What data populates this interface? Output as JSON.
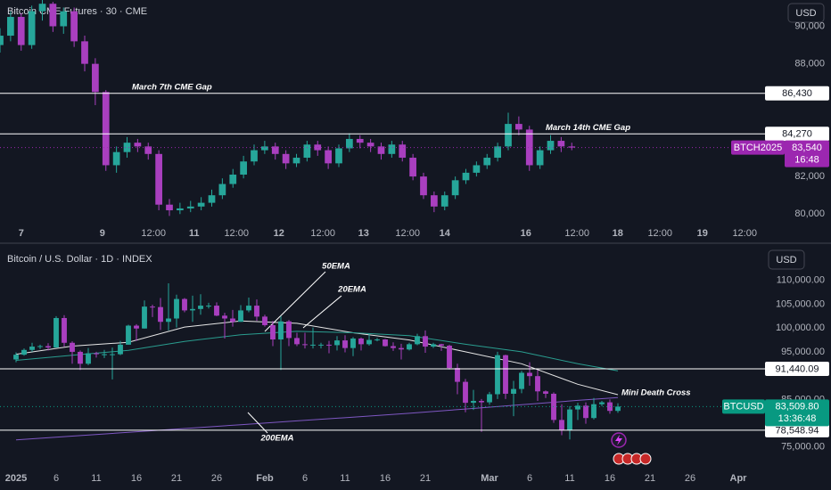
{
  "chart_data": [
    {
      "type": "candlestick",
      "title": "Bitcoin CME Futures · 30 · CME",
      "currency": "USD",
      "up_color": "#26a69a",
      "down_color": "#a93fbf",
      "x": [
        0,
        3,
        6,
        9,
        12,
        15,
        18,
        21,
        24,
        27,
        30,
        33,
        36,
        39,
        42,
        45,
        48,
        51,
        54,
        57,
        60,
        63,
        66,
        69,
        72,
        75,
        78,
        81,
        84,
        87,
        90,
        93,
        96,
        99,
        102,
        105,
        108,
        111,
        114,
        117,
        120,
        123,
        126,
        129,
        132,
        135,
        138,
        141,
        144,
        147,
        150,
        153,
        156,
        159,
        162
      ],
      "open": [
        89000,
        89500,
        90500,
        89000,
        90800,
        91200,
        90000,
        90800,
        89200,
        88000,
        86500,
        82600,
        83300,
        83800,
        83600,
        83200,
        80500,
        80200,
        80300,
        80400,
        80600,
        81000,
        81600,
        82100,
        82800,
        83400,
        83600,
        83200,
        82700,
        83000,
        83700,
        83400,
        82700,
        83500,
        84000,
        83800,
        83600,
        83200,
        83700,
        83000,
        82000,
        81000,
        80400,
        81000,
        81800,
        82200,
        82600,
        83000,
        83600,
        84800,
        84500,
        82600,
        83400,
        83900,
        83600
      ],
      "high": [
        89900,
        90800,
        90700,
        91100,
        91400,
        91300,
        91000,
        91000,
        89500,
        88300,
        86600,
        83600,
        84100,
        84000,
        83800,
        83400,
        80800,
        80600,
        80700,
        80900,
        81300,
        81900,
        82400,
        83100,
        83700,
        83900,
        83800,
        83400,
        83200,
        83900,
        83900,
        83600,
        83700,
        84300,
        84200,
        84000,
        83800,
        83900,
        83900,
        83200,
        82200,
        81200,
        81200,
        82000,
        82400,
        82800,
        83200,
        83800,
        85400,
        85200,
        84700,
        83600,
        84200,
        84100,
        83800
      ],
      "low": [
        88600,
        89200,
        88700,
        88800,
        90300,
        89700,
        89600,
        88900,
        87600,
        85800,
        82300,
        82200,
        83000,
        83300,
        82900,
        80200,
        79900,
        80000,
        80100,
        80200,
        80400,
        80800,
        81400,
        81900,
        82600,
        83200,
        82900,
        82400,
        82500,
        82800,
        83100,
        82400,
        82500,
        83300,
        83500,
        83300,
        82900,
        83000,
        82800,
        81800,
        80800,
        80100,
        80200,
        80800,
        81600,
        82000,
        82400,
        82800,
        83400,
        84200,
        82300,
        82400,
        83200,
        83300,
        83400
      ],
      "close": [
        89500,
        90500,
        89000,
        90800,
        91200,
        90000,
        90800,
        89200,
        88000,
        86500,
        82600,
        83300,
        83800,
        83600,
        83200,
        80500,
        80200,
        80300,
        80400,
        80600,
        81000,
        81600,
        82100,
        82800,
        83400,
        83600,
        83200,
        82700,
        83000,
        83700,
        83400,
        82700,
        83500,
        84000,
        83800,
        83600,
        83200,
        83700,
        83000,
        82000,
        81000,
        80400,
        81000,
        81800,
        82200,
        82600,
        83000,
        83600,
        84800,
        84500,
        82600,
        83400,
        83900,
        83600,
        83540
      ],
      "xlim": [
        0,
        216
      ],
      "xticks": [
        {
          "value": 6,
          "label": "7"
        },
        {
          "value": 29,
          "label": "9"
        },
        {
          "value": 43.5,
          "label": "12:00"
        },
        {
          "value": 55,
          "label": "11"
        },
        {
          "value": 67,
          "label": "12:00"
        },
        {
          "value": 79,
          "label": "12"
        },
        {
          "value": 91.5,
          "label": "12:00"
        },
        {
          "value": 103,
          "label": "13"
        },
        {
          "value": 115.5,
          "label": "12:00"
        },
        {
          "value": 126,
          "label": "14"
        },
        {
          "value": 149,
          "label": "16"
        },
        {
          "value": 163.5,
          "label": "12:00"
        },
        {
          "value": 175,
          "label": "18"
        },
        {
          "value": 187,
          "label": "12:00"
        },
        {
          "value": 199,
          "label": "19"
        },
        {
          "value": 211,
          "label": "12:00"
        }
      ],
      "ylim": [
        79300,
        91400
      ],
      "yticks": [
        {
          "value": 80000,
          "label": "80,000"
        },
        {
          "value": 82000,
          "label": "82,000"
        },
        {
          "value": 88000,
          "label": "88,000"
        },
        {
          "value": 90000,
          "label": "90,000"
        }
      ],
      "levels": [
        {
          "value": 86430,
          "label": "86,430",
          "note": "March 7th CME Gap"
        },
        {
          "value": 84270,
          "label": "84,270",
          "note": "March 14th CME Gap"
        }
      ],
      "last_price": {
        "symbol": "BTCH2025",
        "value": 83540,
        "label": "83,540",
        "countdown": "16:48",
        "color": "#9c27b0"
      }
    },
    {
      "type": "candlestick",
      "title": "Bitcoin / U.S. Dollar · 1D · INDEX",
      "currency": "USD",
      "up_color": "#26a69a",
      "down_color": "#a93fbf",
      "x": [
        "2025-01-01",
        "2025-01-02",
        "2025-01-03",
        "2025-01-04",
        "2025-01-05",
        "2025-01-06",
        "2025-01-07",
        "2025-01-08",
        "2025-01-09",
        "2025-01-10",
        "2025-01-11",
        "2025-01-12",
        "2025-01-13",
        "2025-01-14",
        "2025-01-15",
        "2025-01-16",
        "2025-01-17",
        "2025-01-18",
        "2025-01-19",
        "2025-01-20",
        "2025-01-21",
        "2025-01-22",
        "2025-01-23",
        "2025-01-24",
        "2025-01-25",
        "2025-01-26",
        "2025-01-27",
        "2025-01-28",
        "2025-01-29",
        "2025-01-30",
        "2025-01-31",
        "2025-02-01",
        "2025-02-02",
        "2025-02-03",
        "2025-02-04",
        "2025-02-05",
        "2025-02-06",
        "2025-02-07",
        "2025-02-08",
        "2025-02-09",
        "2025-02-10",
        "2025-02-11",
        "2025-02-12",
        "2025-02-13",
        "2025-02-14",
        "2025-02-15",
        "2025-02-16",
        "2025-02-17",
        "2025-02-18",
        "2025-02-19",
        "2025-02-20",
        "2025-02-21",
        "2025-02-22",
        "2025-02-23",
        "2025-02-24",
        "2025-02-25",
        "2025-02-26",
        "2025-02-27",
        "2025-02-28",
        "2025-03-01",
        "2025-03-02",
        "2025-03-03",
        "2025-03-04",
        "2025-03-05",
        "2025-03-06",
        "2025-03-07",
        "2025-03-08",
        "2025-03-09",
        "2025-03-10",
        "2025-03-11",
        "2025-03-12",
        "2025-03-13",
        "2025-03-14",
        "2025-03-15",
        "2025-03-16",
        "2025-03-17"
      ],
      "open": [
        93400,
        94400,
        95400,
        96100,
        96200,
        95900,
        102100,
        96900,
        95000,
        92500,
        94700,
        94500,
        94500,
        94500,
        96500,
        100500,
        99900,
        104500,
        104400,
        101300,
        102000,
        106100,
        103700,
        104000,
        104700,
        104700,
        102600,
        102000,
        101300,
        103700,
        104700,
        102400,
        100600,
        97600,
        101400,
        97900,
        96600,
        96500,
        96500,
        96500,
        96400,
        97400,
        95800,
        97800,
        96600,
        97500,
        97600,
        96200,
        95800,
        95500,
        96600,
        98300,
        96100,
        96600,
        96300,
        91600,
        88700,
        84300,
        84700,
        84400,
        86100,
        94300,
        86200,
        87200,
        90600,
        89900,
        86700,
        86200,
        80700,
        78600,
        82900,
        83700,
        81100,
        84000,
        84400,
        82600
      ],
      "high": [
        94900,
        95700,
        96900,
        96500,
        96800,
        102500,
        102700,
        97200,
        95300,
        95800,
        95000,
        95400,
        95900,
        97300,
        100700,
        100800,
        105800,
        104900,
        106300,
        109400,
        107000,
        106300,
        106800,
        107100,
        105300,
        105400,
        103200,
        103800,
        104800,
        106400,
        106000,
        102800,
        101500,
        102500,
        101700,
        99000,
        99000,
        100100,
        96900,
        97300,
        98300,
        98500,
        98100,
        98000,
        98800,
        97900,
        97700,
        97000,
        96700,
        96900,
        98800,
        99500,
        96900,
        96700,
        96500,
        92500,
        89300,
        87000,
        85100,
        86600,
        95000,
        94400,
        88900,
        91000,
        92800,
        91200,
        86900,
        86500,
        84000,
        83600,
        84300,
        84400,
        85300,
        84700,
        85000,
        84200
      ],
      "low": [
        92800,
        94200,
        95000,
        95600,
        95300,
        95900,
        96100,
        92500,
        91200,
        92200,
        93800,
        93700,
        89200,
        94300,
        96500,
        97300,
        99900,
        102300,
        99600,
        99500,
        100100,
        103300,
        101300,
        102800,
        104100,
        102500,
        97800,
        100300,
        101300,
        103300,
        101500,
        100300,
        96200,
        91200,
        96200,
        96200,
        95700,
        95700,
        95700,
        94700,
        95300,
        94900,
        94100,
        95300,
        96300,
        97200,
        96100,
        95200,
        93400,
        95300,
        96400,
        94800,
        95800,
        95200,
        91300,
        86100,
        82300,
        82800,
        78200,
        83900,
        85100,
        85100,
        81500,
        86300,
        87900,
        84700,
        85300,
        80100,
        77500,
        76600,
        80700,
        79900,
        80800,
        83600,
        82000,
        82200
      ],
      "close": [
        94400,
        95400,
        96100,
        96200,
        95900,
        102100,
        96900,
        95000,
        92500,
        94700,
        94500,
        94500,
        94500,
        96500,
        100500,
        99900,
        104500,
        104400,
        101300,
        102000,
        106100,
        103700,
        104000,
        104700,
        104700,
        102600,
        102000,
        101300,
        103700,
        104700,
        102400,
        100600,
        97600,
        101400,
        97900,
        96600,
        96500,
        96500,
        96500,
        96400,
        97400,
        95800,
        97800,
        96600,
        97500,
        97600,
        96200,
        95800,
        95500,
        96600,
        98300,
        96100,
        96600,
        96300,
        91600,
        88700,
        84300,
        84700,
        84400,
        86100,
        94300,
        86200,
        87200,
        90600,
        89900,
        86700,
        86200,
        80700,
        78600,
        82900,
        83700,
        81100,
        84000,
        84400,
        82600,
        83509.8
      ],
      "series": [
        {
          "name": "20EMA",
          "color": "#e6e6e6",
          "x": [
            "2025-01-01",
            "2025-01-08",
            "2025-01-15",
            "2025-01-22",
            "2025-01-29",
            "2025-02-05",
            "2025-02-12",
            "2025-02-19",
            "2025-02-26",
            "2025-03-05",
            "2025-03-12",
            "2025-03-17"
          ],
          "values": [
            94500,
            96200,
            97000,
            100200,
            101500,
            101000,
            99000,
            97500,
            95000,
            92500,
            88200,
            86000
          ]
        },
        {
          "name": "50EMA",
          "color": "#2a9d8f",
          "x": [
            "2025-01-01",
            "2025-01-08",
            "2025-01-15",
            "2025-01-22",
            "2025-01-29",
            "2025-02-05",
            "2025-02-12",
            "2025-02-19",
            "2025-02-26",
            "2025-03-05",
            "2025-03-12",
            "2025-03-17"
          ],
          "values": [
            93200,
            94300,
            95300,
            97200,
            98600,
            99300,
            99000,
            98400,
            96600,
            95000,
            92500,
            91000
          ]
        },
        {
          "name": "200EMA",
          "color": "#7e57c2",
          "x": [
            "2025-01-01",
            "2025-01-08",
            "2025-01-15",
            "2025-01-22",
            "2025-01-29",
            "2025-02-05",
            "2025-02-12",
            "2025-02-19",
            "2025-02-26",
            "2025-03-05",
            "2025-03-12",
            "2025-03-17"
          ],
          "values": [
            76500,
            77300,
            78100,
            78900,
            79700,
            80500,
            81300,
            82100,
            83000,
            83900,
            84800,
            85400
          ]
        }
      ],
      "annotations": [
        "Mini Death Cross"
      ],
      "xlim": [
        "2025-01-01",
        "2025-04-04"
      ],
      "xticks": [
        {
          "value": "2025-01-01",
          "label": "2025"
        },
        {
          "value": "2025-01-06",
          "label": "6"
        },
        {
          "value": "2025-01-11",
          "label": "11"
        },
        {
          "value": "2025-01-16",
          "label": "16"
        },
        {
          "value": "2025-01-21",
          "label": "21"
        },
        {
          "value": "2025-01-26",
          "label": "26"
        },
        {
          "value": "2025-02-01",
          "label": "Feb"
        },
        {
          "value": "2025-02-06",
          "label": "6"
        },
        {
          "value": "2025-02-11",
          "label": "11"
        },
        {
          "value": "2025-02-16",
          "label": "16"
        },
        {
          "value": "2025-02-21",
          "label": "21"
        },
        {
          "value": "2025-03-01",
          "label": "Mar"
        },
        {
          "value": "2025-03-06",
          "label": "6"
        },
        {
          "value": "2025-03-11",
          "label": "11"
        },
        {
          "value": "2025-03-16",
          "label": "16"
        },
        {
          "value": "2025-03-21",
          "label": "21"
        },
        {
          "value": "2025-03-26",
          "label": "26"
        },
        {
          "value": "2025-04-01",
          "label": "Apr"
        }
      ],
      "ylim": [
        71600,
        116500
      ],
      "yticks": [
        {
          "value": 75000,
          "label": "75,000.00"
        },
        {
          "value": 85000,
          "label": "85,000.00"
        },
        {
          "value": 95000,
          "label": "95,000.00"
        },
        {
          "value": 100000,
          "label": "100,000.00"
        },
        {
          "value": 105000,
          "label": "105,000.00"
        },
        {
          "value": 110000,
          "label": "110,000.00"
        }
      ],
      "levels": [
        {
          "value": 91440.09,
          "label": "91,440.09"
        },
        {
          "value": 78548.94,
          "label": "78,548.94"
        }
      ],
      "last_price": {
        "symbol": "BTCUSD",
        "value": 83509.8,
        "label": "83,509.80",
        "countdown": "13:36:48",
        "color": "#089981"
      }
    }
  ]
}
